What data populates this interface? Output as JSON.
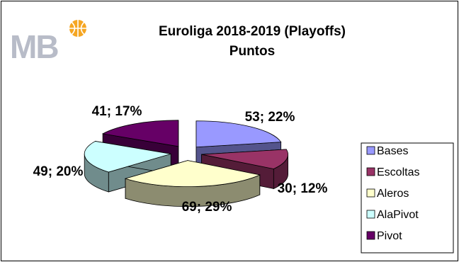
{
  "logo": {
    "text": "MB"
  },
  "chart_data": {
    "type": "pie",
    "style": "3d-exploded",
    "title": "Euroliga 2018-2019 (Playoffs)",
    "subtitle": "Puntos",
    "categories": [
      "Bases",
      "Escoltas",
      "Aleros",
      "AlaPivot",
      "Pivot"
    ],
    "values": [
      53,
      30,
      69,
      49,
      41
    ],
    "percents": [
      22,
      12,
      29,
      20,
      17
    ],
    "labels": [
      "53; 22%",
      "30; 12%",
      "69; 29%",
      "49; 20%",
      "41; 17%"
    ],
    "colors": [
      "#9999ff",
      "#993366",
      "#ffffcc",
      "#ccffff",
      "#660066"
    ],
    "legend_position": "right"
  }
}
